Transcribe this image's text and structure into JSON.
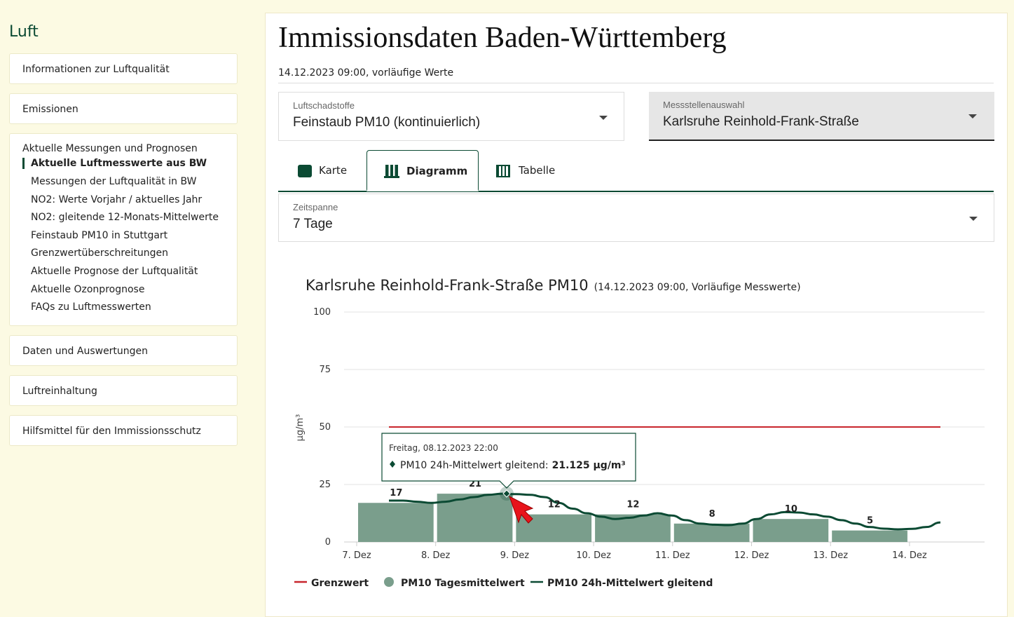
{
  "sidebar": {
    "title": "Luft",
    "items": [
      "Informationen zur Luftqualität",
      "Emissionen"
    ],
    "group": {
      "title": "Aktuelle Messungen und Prognosen",
      "active": "Aktuelle Luftmesswerte aus BW",
      "links": [
        "Messungen der Luftqualität in BW",
        "NO2: Werte Vorjahr / aktuelles Jahr",
        "NO2: gleitende 12-Monats-Mittelwerte",
        "Feinstaub PM10 in Stuttgart",
        "Grenzwertüberschreitungen",
        "Aktuelle Prognose der Luftqualität",
        "Aktuelle Ozonprognose",
        "FAQs zu Luftmesswerten"
      ]
    },
    "items_after": [
      "Daten und Auswertungen",
      "Luftreinhaltung",
      "Hilfsmittel für den Immissionsschutz"
    ]
  },
  "main": {
    "heading": "Immissionsdaten Baden-Württemberg",
    "timestamp": "14.12.2023 09:00, vorläufige Werte",
    "pollutant": {
      "label": "Luftschadstoffe",
      "value": "Feinstaub PM10 (kontinuierlich)"
    },
    "station": {
      "label": "Messstellenauswahl",
      "value": "Karlsruhe Reinhold-Frank-Straße"
    },
    "tabs": [
      "Karte",
      "Diagramm",
      "Tabelle"
    ],
    "period": {
      "label": "Zeitspanne",
      "value": "7 Tage"
    }
  },
  "chart_data": {
    "type": "bar",
    "title": "Karlsruhe Reinhold-Frank-Straße PM10",
    "subtitle": "(14.12.2023 09:00, Vorläufige Messwerte)",
    "y_label": "µg/m³",
    "x_labels": [
      "7. Dez",
      "8. Dez",
      "9. Dez",
      "10. Dez",
      "11. Dez",
      "12. Dez",
      "13. Dez",
      "14. Dez"
    ],
    "ylim": [
      0,
      100
    ],
    "yticks": [
      0,
      25,
      50,
      75,
      100
    ],
    "grid": true,
    "series": [
      {
        "name": "Grenzwert",
        "color": "#c8262c",
        "values": [
          50,
          50
        ]
      },
      {
        "name": "PM10 Tagesmittelwert",
        "color": "#7a9e8c",
        "values": [
          17,
          21,
          12,
          12,
          8,
          10,
          5
        ]
      },
      {
        "name": "PM10 24h-Mittelwert gleitend",
        "color": "#0b4a33",
        "values": [
          18,
          18,
          17.5,
          17,
          17.5,
          18.5,
          19.5,
          20.5,
          21,
          20.8,
          20.5,
          19.5,
          17,
          14.5,
          12.5,
          11,
          10,
          10.5,
          11.5,
          12.5,
          11.5,
          9.5,
          8,
          7.5,
          7.3,
          8,
          10,
          12,
          13,
          12.8,
          12,
          11,
          9.5,
          8,
          6.5,
          5.8,
          5.5,
          5.7,
          6.5,
          8.5
        ]
      }
    ],
    "tooltip": {
      "date": "Freitag, 08.12.2023 22:00",
      "label": "PM10 24h-Mittelwert gleitend:",
      "value": "21.125 µg/m³"
    }
  }
}
